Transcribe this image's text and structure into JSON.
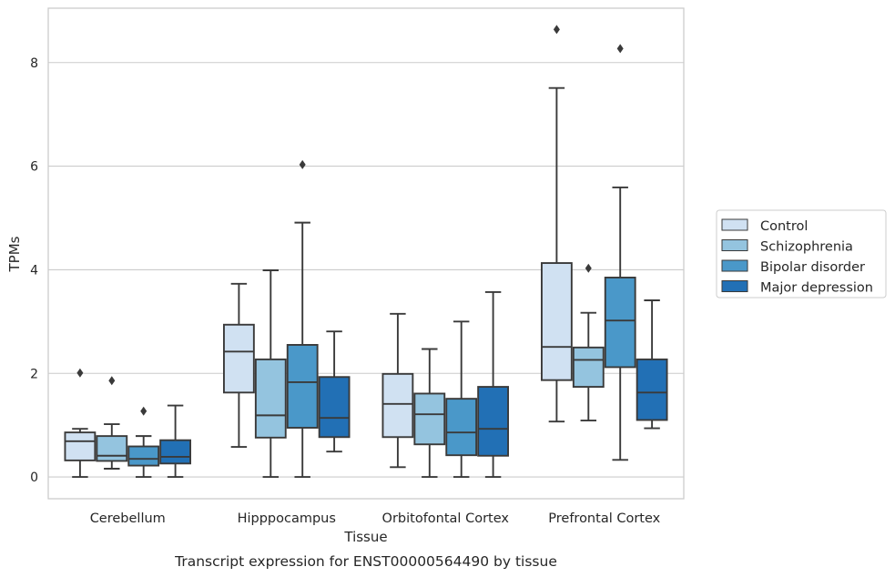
{
  "chart_data": {
    "type": "box",
    "title": "",
    "caption": "Transcript expression for ENST00000564490 by tissue",
    "xlabel": "Tissue",
    "ylabel": "TPMs",
    "ylim": [
      -0.42,
      9.05
    ],
    "yticks": [
      0,
      2,
      4,
      6,
      8
    ],
    "grid": "horizontal",
    "legend_position": "right-center",
    "categories": [
      "Cerebellum",
      "Hipppocampus",
      "Orbitofontal Cortex",
      "Prefrontal Cortex"
    ],
    "series": [
      {
        "name": "Control",
        "color": "#d0e1f2",
        "boxes": [
          {
            "whisker_low": 0.0,
            "q1": 0.32,
            "median": 0.69,
            "q3": 0.86,
            "whisker_high": 0.93,
            "outliers": [
              2.01
            ]
          },
          {
            "whisker_low": 0.58,
            "q1": 1.63,
            "median": 2.42,
            "q3": 2.94,
            "whisker_high": 3.73,
            "outliers": []
          },
          {
            "whisker_low": 0.19,
            "q1": 0.77,
            "median": 1.41,
            "q3": 1.99,
            "whisker_high": 3.15,
            "outliers": []
          },
          {
            "whisker_low": 1.07,
            "q1": 1.87,
            "median": 2.51,
            "q3": 4.13,
            "whisker_high": 7.51,
            "outliers": [
              8.64
            ]
          }
        ]
      },
      {
        "name": "Schizophrenia",
        "color": "#94c4df",
        "boxes": [
          {
            "whisker_low": 0.16,
            "q1": 0.31,
            "median": 0.41,
            "q3": 0.79,
            "whisker_high": 1.02,
            "outliers": [
              1.86
            ]
          },
          {
            "whisker_low": 0.0,
            "q1": 0.76,
            "median": 1.19,
            "q3": 2.27,
            "whisker_high": 3.99,
            "outliers": []
          },
          {
            "whisker_low": 0.0,
            "q1": 0.63,
            "median": 1.21,
            "q3": 1.61,
            "whisker_high": 2.47,
            "outliers": []
          },
          {
            "whisker_low": 1.09,
            "q1": 1.74,
            "median": 2.26,
            "q3": 2.5,
            "whisker_high": 3.17,
            "outliers": [
              4.03
            ]
          }
        ]
      },
      {
        "name": "Bipolar disorder",
        "color": "#4a98c9",
        "boxes": [
          {
            "whisker_low": 0.0,
            "q1": 0.22,
            "median": 0.35,
            "q3": 0.59,
            "whisker_high": 0.79,
            "outliers": [
              1.27
            ]
          },
          {
            "whisker_low": 0.0,
            "q1": 0.95,
            "median": 1.83,
            "q3": 2.55,
            "whisker_high": 4.91,
            "outliers": [
              6.03
            ]
          },
          {
            "whisker_low": 0.0,
            "q1": 0.42,
            "median": 0.86,
            "q3": 1.51,
            "whisker_high": 3.0,
            "outliers": []
          },
          {
            "whisker_low": 0.33,
            "q1": 2.12,
            "median": 3.02,
            "q3": 3.85,
            "whisker_high": 5.59,
            "outliers": [
              8.27
            ]
          }
        ]
      },
      {
        "name": "Major depression",
        "color": "#2270b5",
        "boxes": [
          {
            "whisker_low": 0.0,
            "q1": 0.26,
            "median": 0.39,
            "q3": 0.71,
            "whisker_high": 1.38,
            "outliers": []
          },
          {
            "whisker_low": 0.49,
            "q1": 0.77,
            "median": 1.14,
            "q3": 1.93,
            "whisker_high": 2.81,
            "outliers": []
          },
          {
            "whisker_low": 0.0,
            "q1": 0.41,
            "median": 0.93,
            "q3": 1.74,
            "whisker_high": 3.57,
            "outliers": []
          },
          {
            "whisker_low": 0.94,
            "q1": 1.1,
            "median": 1.63,
            "q3": 2.27,
            "whisker_high": 3.41,
            "outliers": []
          }
        ]
      }
    ]
  }
}
